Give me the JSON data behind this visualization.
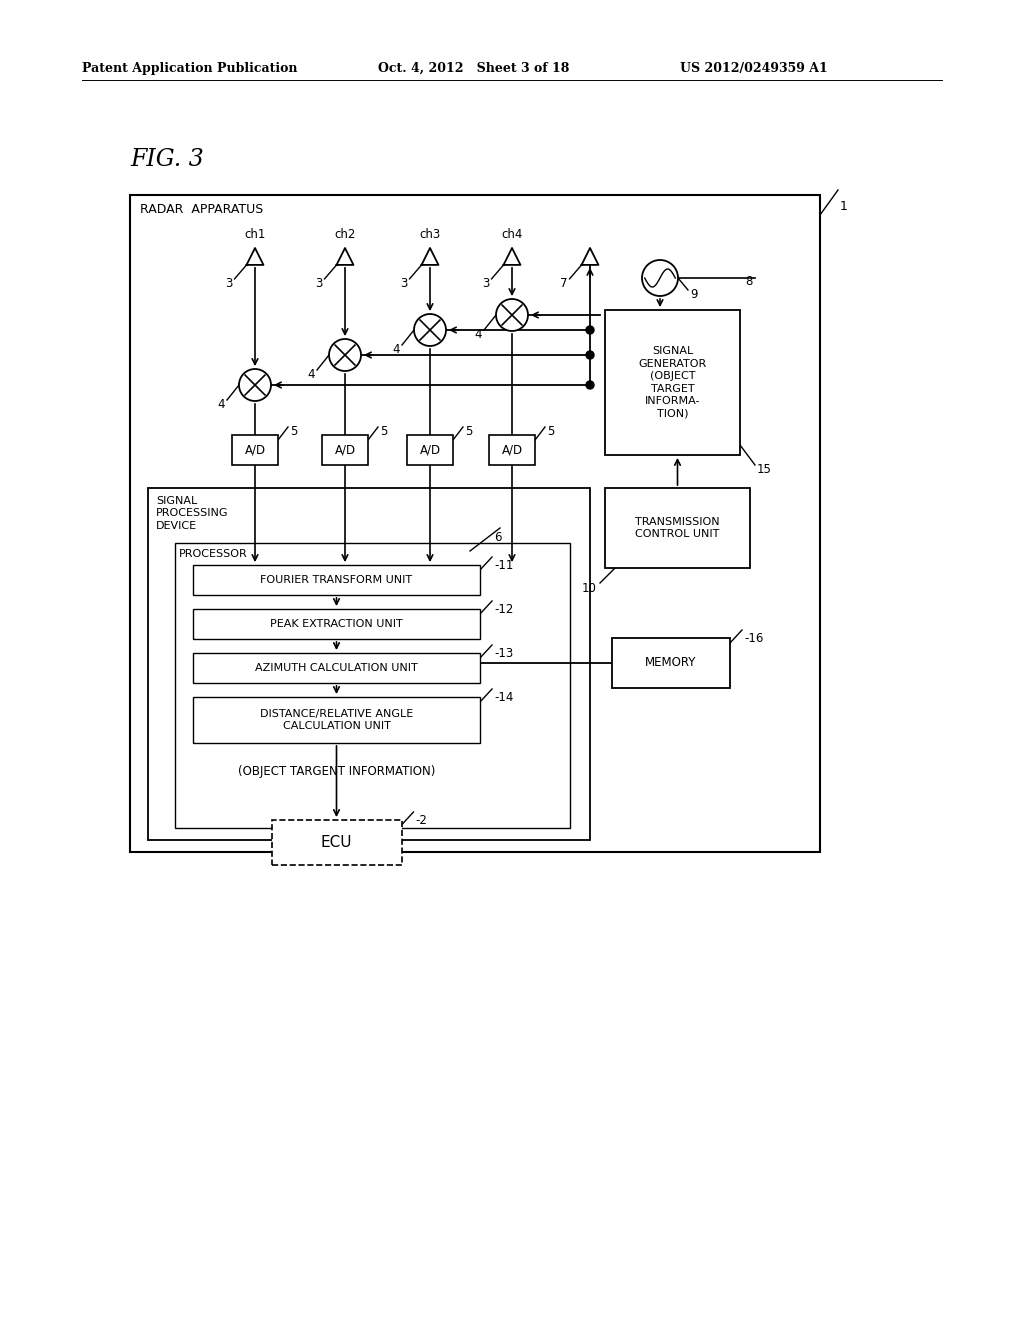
{
  "header_left": "Patent Application Publication",
  "header_mid": "Oct. 4, 2012   Sheet 3 of 18",
  "header_right": "US 2012/0249359 A1",
  "fig_label": "FIG. 3",
  "bg_color": "#ffffff",
  "line_color": "#000000",
  "channels": [
    "ch1",
    "ch2",
    "ch3",
    "ch4"
  ],
  "labels": {
    "radar_apparatus": "RADAR  APPARATUS",
    "signal_generator": "SIGNAL\nGENERATOR\n(OBJECT\nTARGET\nINFORMA-\nTION)",
    "signal_processing": "SIGNAL\nPROCESSING\nDEVICE",
    "processor": "PROCESSOR",
    "fourier": "FOURIER TRANSFORM UNIT",
    "peak": "PEAK EXTRACTION UNIT",
    "azimuth": "AZIMUTH CALCULATION UNIT",
    "distance": "DISTANCE/RELATIVE ANGLE\nCALCULATION UNIT",
    "transmission": "TRANSMISSION\nCONTROL UNIT",
    "memory": "MEMORY",
    "ecu": "ECU",
    "object_info": "(OBJECT TARGENT INFORMATION)"
  }
}
